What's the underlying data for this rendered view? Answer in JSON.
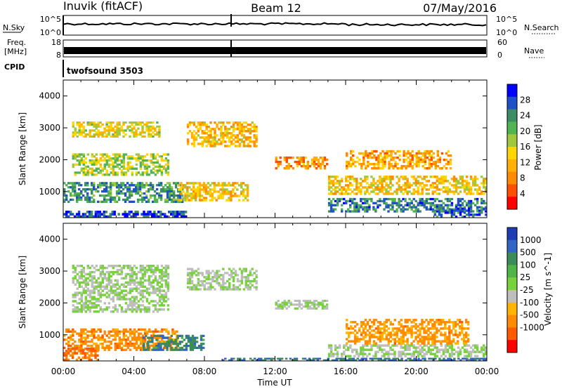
{
  "header": {
    "station": "Inuvik (fitACF)",
    "beam": "Beam 12",
    "date": "07/May/2016"
  },
  "strip_labels": {
    "nsky": "N.Sky",
    "nsearch": "N.Search",
    "freq_line1": "Freq.",
    "freq_line2": "[MHz]",
    "nave": "Nave",
    "cpid": "CPID",
    "nsky_ticks": [
      "10^5",
      "10^0"
    ],
    "nsearch_ticks": [
      "10^5",
      "10^0"
    ],
    "freq_ticks": [
      "18",
      "8"
    ],
    "nave_ticks": [
      "60",
      "0"
    ],
    "cpid_value": "twofsound 3503"
  },
  "chart_data": [
    {
      "type": "heatmap",
      "name": "power-panel",
      "ylabel": "Slant Range [km]",
      "ylim": [
        180,
        4500
      ],
      "yticks": [
        1000,
        2000,
        3000,
        4000
      ],
      "xticks": [
        "00:00",
        "04:00",
        "08:00",
        "12:00",
        "16:00",
        "20:00",
        "00:00"
      ],
      "xlim_hours": [
        0,
        24
      ],
      "colorbar": {
        "label": "Power [dB]",
        "tick_labels": [
          "4",
          "8",
          "12",
          "16",
          "20",
          "24",
          "28"
        ],
        "colors": [
          "#0000ff",
          "#2050c8",
          "#3c8c64",
          "#50b450",
          "#a0c83c",
          "#ffd700",
          "#ffb000",
          "#ff8c00",
          "#ff5000",
          "#ff0000"
        ]
      },
      "echo_bands": [
        {
          "t": [
            0.0,
            6.8
          ],
          "r": [
            650,
            1300
          ],
          "value": 0.75
        },
        {
          "t": [
            0.5,
            6.0
          ],
          "r": [
            1500,
            2200
          ],
          "value": 0.55
        },
        {
          "t": [
            0.5,
            5.5
          ],
          "r": [
            2700,
            3200
          ],
          "value": 0.45
        },
        {
          "t": [
            0.0,
            7.0
          ],
          "r": [
            180,
            400
          ],
          "value": 0.9
        },
        {
          "t": [
            6.5,
            10.5
          ],
          "r": [
            700,
            1300
          ],
          "value": 0.4
        },
        {
          "t": [
            7.0,
            11.0
          ],
          "r": [
            2400,
            3200
          ],
          "value": 0.35
        },
        {
          "t": [
            12.0,
            15.0
          ],
          "r": [
            1700,
            2100
          ],
          "value": 0.25
        },
        {
          "t": [
            15.0,
            24.0
          ],
          "r": [
            350,
            800
          ],
          "value": 0.8
        },
        {
          "t": [
            15.0,
            24.0
          ],
          "r": [
            900,
            1500
          ],
          "value": 0.4
        },
        {
          "t": [
            16.0,
            22.0
          ],
          "r": [
            1700,
            2300
          ],
          "value": 0.3
        },
        {
          "t": [
            21.0,
            24.0
          ],
          "r": [
            180,
            500
          ],
          "value": 0.85
        }
      ]
    },
    {
      "type": "heatmap",
      "name": "velocity-panel",
      "ylabel": "Slant Range [km]",
      "xlabel": "Time UT",
      "ylim": [
        180,
        4500
      ],
      "yticks": [
        1000,
        2000,
        3000,
        4000
      ],
      "xticks": [
        "00:00",
        "04:00",
        "08:00",
        "12:00",
        "16:00",
        "20:00",
        "00:00"
      ],
      "xlim_hours": [
        0,
        24
      ],
      "colorbar": {
        "label": "Velocity [m s^-1]",
        "tick_labels": [
          "1000",
          "500",
          "100",
          "25",
          "-25",
          "-100",
          "-500",
          "-1000"
        ],
        "colors": [
          "#1e3cb4",
          "#3264c8",
          "#3c8c5a",
          "#50b446",
          "#78d23c",
          "#bebebe",
          "#ffb400",
          "#ff8c00",
          "#ff5a00",
          "#ff0000"
        ]
      },
      "echo_bands": [
        {
          "t": [
            0.0,
            6.5
          ],
          "r": [
            500,
            1200
          ],
          "value": -0.55
        },
        {
          "t": [
            0.5,
            6.0
          ],
          "r": [
            1700,
            3200
          ],
          "value": 0.0
        },
        {
          "t": [
            4.5,
            8.0
          ],
          "r": [
            500,
            1000
          ],
          "value": 0.6
        },
        {
          "t": [
            7.0,
            11.0
          ],
          "r": [
            2400,
            3100
          ],
          "value": 0.0
        },
        {
          "t": [
            12.0,
            15.0
          ],
          "r": [
            1800,
            2100
          ],
          "value": 0.0
        },
        {
          "t": [
            15.0,
            24.0
          ],
          "r": [
            300,
            700
          ],
          "value": 0.0
        },
        {
          "t": [
            16.0,
            23.0
          ],
          "r": [
            700,
            1500
          ],
          "value": -0.5
        },
        {
          "t": [
            9.0,
            24.0
          ],
          "r": [
            180,
            280
          ],
          "value": 0.7
        },
        {
          "t": [
            0.0,
            2.0
          ],
          "r": [
            180,
            600
          ],
          "value": -0.7
        }
      ]
    }
  ]
}
